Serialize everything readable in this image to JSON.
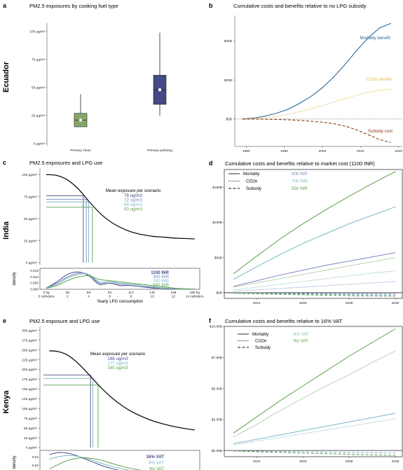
{
  "chart_data": [
    {
      "panel": "a",
      "type": "box",
      "country": "Ecuador",
      "title": "PM2.5 exposures by cooking fuel type",
      "categories": [
        "Primary clean",
        "Primary polluting"
      ],
      "yticks": [
        "0 µg/m³",
        "25 µg/m³",
        "50 µg/m³",
        "75 µg/m³",
        "100 µg/m³"
      ],
      "ylim": [
        0,
        105
      ],
      "boxes": [
        {
          "color": "#86a76a",
          "whisker_low": 15,
          "q1": 15,
          "median": 21,
          "q3": 27,
          "whisker_high": 44,
          "mean": 21
        },
        {
          "color": "#434a86",
          "whisker_low": 25,
          "q1": 35,
          "median": 48,
          "q3": 61,
          "whisker_high": 99,
          "mean": 48
        }
      ]
    },
    {
      "panel": "b",
      "type": "line",
      "title": "Cumulative costs and benefits relative to no LPG subsidy",
      "xlim": [
        1977,
        2021
      ],
      "ylim": [
        -14,
        53
      ],
      "xticks": [
        1980,
        1990,
        2000,
        2010,
        2020
      ],
      "yticks": [
        {
          "v": 0,
          "label": "$0B"
        },
        {
          "v": 20,
          "label": "$20B"
        },
        {
          "v": 40,
          "label": "$40B"
        }
      ],
      "x": [
        1979,
        1982,
        1985,
        1988,
        1991,
        1994,
        1997,
        2000,
        2003,
        2006,
        2009,
        2012,
        2015,
        2018
      ],
      "series": [
        {
          "name": "Mortality benefit",
          "color": "#2c6a9c",
          "dash": "solid",
          "values": [
            0,
            0.5,
            1.5,
            3,
            5,
            8,
            11.5,
            16,
            21.5,
            28,
            35,
            41.5,
            46.5,
            49
          ]
        },
        {
          "name": "CO2e benefit",
          "color": "#e2ba4a",
          "dash": "dot",
          "values": [
            0,
            0.2,
            0.7,
            1.4,
            2.4,
            3.7,
            5.2,
            6.9,
            8.7,
            10.5,
            12.2,
            13.7,
            14.8,
            15.2
          ]
        },
        {
          "name": "Subsidy cost",
          "color": "#8a3b12",
          "dash": "dash",
          "values": [
            0,
            0,
            -0.1,
            -0.2,
            -0.4,
            -0.7,
            -1.1,
            -1.6,
            -2.4,
            -3.6,
            -5.5,
            -8,
            -10.5,
            -12
          ]
        }
      ]
    },
    {
      "panel": "c",
      "type": "line",
      "country": "India",
      "title": "PM2.5 exposures and LPG use",
      "xlabel": "Yearly LPG consumption",
      "yticks": [
        "0 µg/m³",
        "25 µg/m³",
        "50 µg/m³",
        "75 µg/m³",
        "100 µg/m³"
      ],
      "ylim": [
        0,
        105
      ],
      "xlim": [
        0,
        200
      ],
      "xticks_kg": [
        "0 kg",
        "28",
        "56",
        "84",
        "112",
        "140",
        "168",
        "196 kg"
      ],
      "xticks_cyl": [
        "0 cylinders",
        "2",
        "4",
        "6",
        "8",
        "10",
        "12",
        "14 cylinders"
      ],
      "curve_x": [
        0,
        14,
        28,
        42,
        56,
        70,
        84,
        98,
        112,
        126,
        140,
        154,
        168,
        182,
        196
      ],
      "curve_y": [
        100,
        99,
        94,
        84,
        70,
        57,
        47,
        40,
        35,
        32,
        30,
        29,
        28,
        27.5,
        27
      ],
      "annotation_title": "Mean exposure per scenario",
      "scenarios": [
        {
          "label": "76 ug/m3",
          "color": "#434a86",
          "x": 49,
          "y": 76
        },
        {
          "label": "72 ug/m3",
          "color": "#7a88c4",
          "x": 53,
          "y": 72
        },
        {
          "label": "69 ug/m3",
          "color": "#7ab8c6",
          "x": 56,
          "y": 69
        },
        {
          "label": "63 ug/m3",
          "color": "#5aa04a",
          "x": 61,
          "y": 63
        }
      ],
      "density_ylabel": "density",
      "density_yticks": [
        "0.000",
        "0.005",
        "0.010",
        "0.015"
      ],
      "density_ylim": [
        0,
        0.017
      ],
      "density_x": [
        0,
        14,
        28,
        42,
        56,
        70,
        84,
        98,
        112,
        126,
        140,
        154,
        168,
        182,
        196
      ],
      "density": [
        {
          "label": "1100 INR",
          "color": "#434a86",
          "values": [
            0.001,
            0.006,
            0.012,
            0.014,
            0.011,
            0.004,
            0.005,
            0.003,
            0.003,
            0.002,
            0.001,
            0.0007,
            0.0004,
            0.0002,
            0.0001
          ]
        },
        {
          "label": "900 INR",
          "color": "#7a88c4",
          "values": [
            0.001,
            0.005,
            0.01,
            0.013,
            0.012,
            0.005,
            0.006,
            0.004,
            0.004,
            0.003,
            0.0015,
            0.001,
            0.0005,
            0.0002,
            0.0001
          ]
        },
        {
          "label": "700 INR",
          "color": "#7ab8c6",
          "values": [
            0.001,
            0.004,
            0.009,
            0.012,
            0.012,
            0.006,
            0.006,
            0.005,
            0.004,
            0.003,
            0.002,
            0.001,
            0.0006,
            0.0003,
            0.0001
          ]
        },
        {
          "label": "550 INR",
          "color": "#5aa04a",
          "values": [
            0.0008,
            0.003,
            0.007,
            0.01,
            0.011,
            0.008,
            0.007,
            0.006,
            0.005,
            0.004,
            0.003,
            0.002,
            0.001,
            0.0004,
            0.0002
          ]
        }
      ]
    },
    {
      "panel": "d",
      "type": "line",
      "title": "Cumulative costs and benefits relative to market cost (1100 INR)",
      "xlim": [
        2022.6,
        2030.3
      ],
      "ylim": [
        -8,
        175
      ],
      "xticks": [
        2024,
        2026,
        2028,
        2030
      ],
      "yticks": [
        {
          "v": 0,
          "label": "$0B"
        },
        {
          "v": 50,
          "label": "$50B"
        },
        {
          "v": 100,
          "label": "$100B"
        },
        {
          "v": 150,
          "label": "$150B"
        }
      ],
      "legend_types": [
        {
          "label": "Mortality",
          "dash": "solid"
        },
        {
          "label": "CO2e",
          "dash": "dot"
        },
        {
          "label": "Subsidy",
          "dash": "dash"
        }
      ],
      "legend_scenarios": [
        {
          "label": "900 INR",
          "color": "#7a88c4"
        },
        {
          "label": "700 INR",
          "color": "#7ab8c6"
        },
        {
          "label": "550 INR",
          "color": "#5aa04a"
        }
      ],
      "x": [
        2023,
        2024,
        2025,
        2026,
        2027,
        2028,
        2029,
        2030
      ],
      "series": [
        {
          "scenario": "550 INR",
          "kind": "Mortality",
          "color": "#5aa04a",
          "dash": "solid",
          "values": [
            27,
            52,
            76,
            98,
            118,
            137,
            155,
            172
          ]
        },
        {
          "scenario": "700 INR",
          "kind": "Mortality",
          "color": "#7ab8c6",
          "dash": "solid",
          "values": [
            19,
            37,
            54,
            70,
            84,
            98,
            110,
            122
          ]
        },
        {
          "scenario": "900 INR",
          "kind": "Mortality",
          "color": "#7a88c4",
          "dash": "solid",
          "values": [
            9,
            17,
            25,
            32,
            39,
            45,
            51,
            57
          ]
        },
        {
          "scenario": "550 INR",
          "kind": "CO2e",
          "color": "#5aa04a",
          "dash": "dot",
          "values": [
            8,
            14,
            20,
            26,
            32,
            38,
            44,
            50
          ]
        },
        {
          "scenario": "700 INR",
          "kind": "CO2e",
          "color": "#7ab8c6",
          "dash": "dot",
          "values": [
            4,
            8,
            12,
            16,
            20,
            24,
            28,
            31
          ]
        },
        {
          "scenario": "900 INR",
          "kind": "CO2e",
          "color": "#7a88c4",
          "dash": "dot",
          "values": [
            2,
            4,
            6,
            8,
            10,
            12,
            14,
            16
          ]
        },
        {
          "scenario": "900 INR",
          "kind": "Subsidy",
          "color": "#7a88c4",
          "dash": "dash",
          "values": [
            -0.3,
            -0.5,
            -0.8,
            -1,
            -1.2,
            -1.4,
            -1.6,
            -1.8
          ]
        },
        {
          "scenario": "700 INR",
          "kind": "Subsidy",
          "color": "#7ab8c6",
          "dash": "dash",
          "values": [
            -0.5,
            -1,
            -1.5,
            -2,
            -2.4,
            -2.8,
            -3.2,
            -3.5
          ]
        },
        {
          "scenario": "550 INR",
          "kind": "Subsidy",
          "color": "#5aa04a",
          "dash": "dash",
          "values": [
            -0.8,
            -1.5,
            -2.2,
            -2.9,
            -3.5,
            -4.1,
            -4.6,
            -5
          ]
        }
      ]
    },
    {
      "panel": "e",
      "type": "line",
      "country": "Kenya",
      "title": "PM2.5 exposure and LPG use",
      "xlabel": "LPG consumption kg/capita/year",
      "yticks": [
        "0 µg/m³",
        "25 µg/m³",
        "50 µg/m³",
        "75 µg/m³",
        "100 µg/m³",
        "125 µg/m³",
        "150 µg/m³",
        "175 µg/m³",
        "200 µg/m³",
        "225 µg/m³",
        "250 µg/m³",
        "275 µg/m³",
        "300 µg/m³"
      ],
      "ylim": [
        0,
        305
      ],
      "xlim": [
        -2,
        52
      ],
      "curve_x": [
        0,
        3,
        6,
        9,
        12,
        15,
        18,
        21,
        24,
        27,
        30,
        35,
        40,
        45,
        50
      ],
      "curve_y": [
        248,
        246,
        238,
        222,
        200,
        176,
        152,
        131,
        113,
        98,
        86,
        70,
        59,
        51,
        45
      ],
      "annotation_title": "Mean exposure per scenario",
      "scenarios": [
        {
          "label": "186 ug/m3",
          "color": "#434a86",
          "x": 14.2,
          "y": 186
        },
        {
          "label": "177 ug/m3",
          "color": "#7ab8c6",
          "x": 15,
          "y": 177
        },
        {
          "label": "160 ug/m3",
          "color": "#5aa04a",
          "x": 16.8,
          "y": 160
        }
      ],
      "density_ylabel": "density",
      "density_yticks": [
        "0.00",
        "0.02",
        "0.04"
      ],
      "density_ylim": [
        0,
        0.055
      ],
      "density_xticks": [
        0,
        10,
        20,
        30,
        40,
        50
      ],
      "density_x": [
        0,
        3,
        6,
        9,
        12,
        15,
        18,
        21,
        24,
        27,
        30,
        35,
        40,
        45,
        50
      ],
      "density": [
        {
          "label": "16% VAT",
          "color": "#434a86",
          "values": [
            0.045,
            0.05,
            0.049,
            0.044,
            0.036,
            0.028,
            0.02,
            0.014,
            0.009,
            0.006,
            0.004,
            0.002,
            0.001,
            0.0005,
            0.0002
          ]
        },
        {
          "label": "8% VAT",
          "color": "#7ab8c6",
          "values": [
            0.035,
            0.04,
            0.043,
            0.042,
            0.038,
            0.032,
            0.025,
            0.019,
            0.014,
            0.01,
            0.007,
            0.004,
            0.002,
            0.001,
            0.0005
          ]
        },
        {
          "label": "No VAT",
          "color": "#5aa04a",
          "values": [
            0.012,
            0.022,
            0.031,
            0.036,
            0.038,
            0.036,
            0.032,
            0.026,
            0.02,
            0.015,
            0.011,
            0.006,
            0.003,
            0.0015,
            0.0008
          ]
        }
      ]
    },
    {
      "panel": "f",
      "type": "line",
      "title": "Cumulative costs and benefits relative to 16% VAT",
      "xlim": [
        2022.6,
        2030.3
      ],
      "ylim": [
        -0.5,
        10
      ],
      "xticks": [
        2024,
        2026,
        2028,
        2030
      ],
      "yticks": [
        {
          "v": 0,
          "label": "$0.00B"
        },
        {
          "v": 2.5,
          "label": "$2.50B"
        },
        {
          "v": 5,
          "label": "$5.00B"
        },
        {
          "v": 7.5,
          "label": "$7.50B"
        },
        {
          "v": 10,
          "label": "$10.00B"
        }
      ],
      "legend_types": [
        {
          "label": "Mortality",
          "dash": "solid"
        },
        {
          "label": "CO2e",
          "dash": "dot"
        },
        {
          "label": "Subsidy",
          "dash": "dash"
        }
      ],
      "legend_scenarios": [
        {
          "label": "8% VAT",
          "color": "#7ab8c6"
        },
        {
          "label": "No VAT",
          "color": "#5aa04a"
        }
      ],
      "x": [
        2023,
        2024,
        2025,
        2026,
        2027,
        2028,
        2029,
        2030
      ],
      "series": [
        {
          "scenario": "No VAT",
          "kind": "Mortality",
          "color": "#5aa04a",
          "dash": "solid",
          "values": [
            1.4,
            2.7,
            4,
            5.2,
            6.4,
            7.6,
            8.7,
            9.8
          ]
        },
        {
          "scenario": "No VAT",
          "kind": "CO2e",
          "color": "#5aa04a",
          "dash": "dot",
          "values": [
            1.1,
            2.1,
            3.2,
            4.2,
            5.2,
            6.1,
            7.1,
            8
          ]
        },
        {
          "scenario": "8% VAT",
          "kind": "Mortality",
          "color": "#7ab8c6",
          "dash": "solid",
          "values": [
            0.55,
            0.9,
            1.25,
            1.6,
            1.95,
            2.3,
            2.65,
            3
          ]
        },
        {
          "scenario": "8% VAT",
          "kind": "CO2e",
          "color": "#7ab8c6",
          "dash": "dot",
          "values": [
            0.45,
            0.75,
            1.05,
            1.35,
            1.65,
            1.95,
            2.25,
            2.55
          ]
        },
        {
          "scenario": "8% VAT",
          "kind": "Subsidy",
          "color": "#7ab8c6",
          "dash": "dash",
          "values": [
            -0.02,
            -0.05,
            -0.08,
            -0.1,
            -0.13,
            -0.16,
            -0.18,
            -0.2
          ]
        },
        {
          "scenario": "No VAT",
          "kind": "Subsidy",
          "color": "#5aa04a",
          "dash": "dash",
          "values": [
            -0.05,
            -0.1,
            -0.16,
            -0.21,
            -0.26,
            -0.31,
            -0.36,
            -0.4
          ]
        }
      ]
    }
  ]
}
